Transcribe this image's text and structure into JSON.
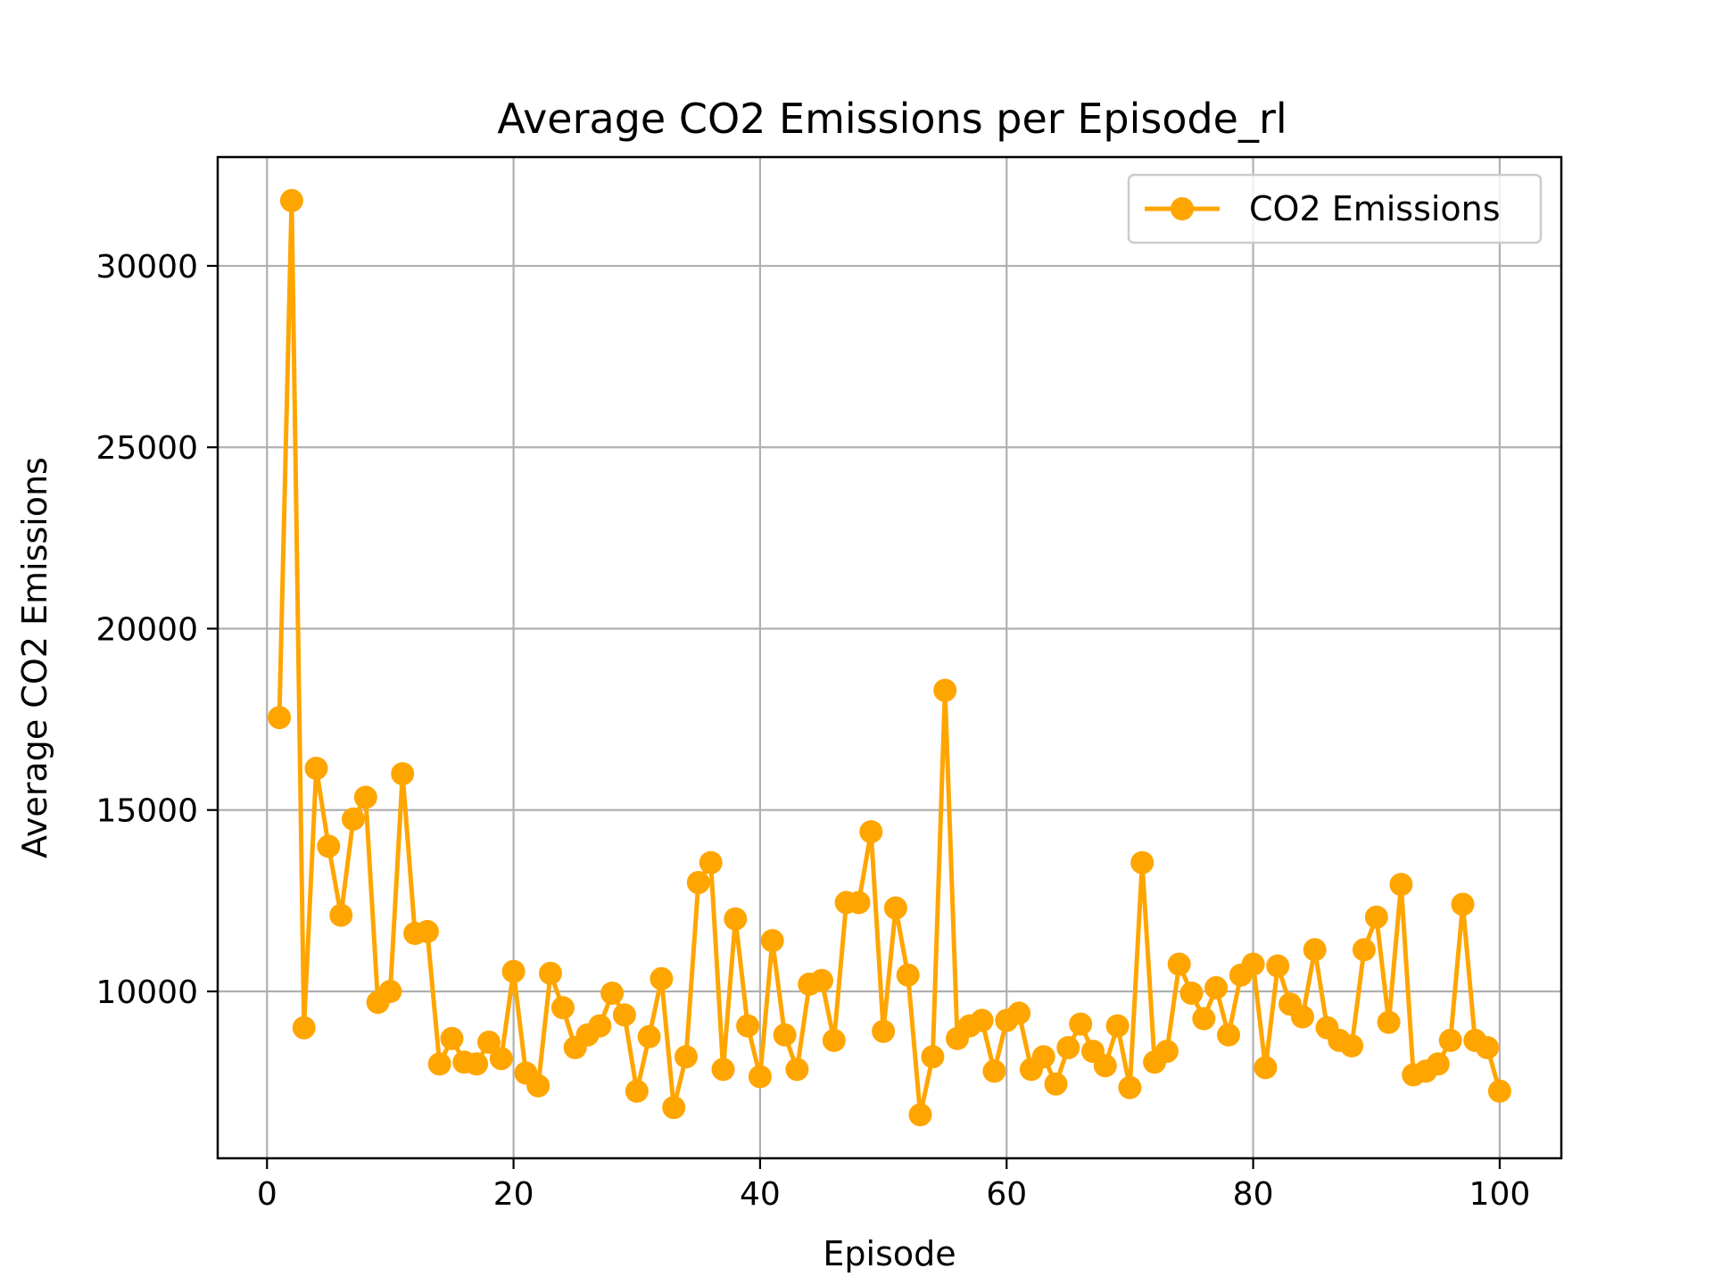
{
  "chart_data": {
    "type": "line",
    "title": "Average CO2 Emissions per Episode_rl",
    "xlabel": "Episode",
    "ylabel": "Average CO2 Emissions",
    "xlim": [
      -4,
      105
    ],
    "ylim": [
      5400,
      33000
    ],
    "xticks": [
      0,
      20,
      40,
      60,
      80,
      100
    ],
    "yticks": [
      10000,
      15000,
      20000,
      25000,
      30000
    ],
    "grid": true,
    "legend_position": "top-right",
    "color": "#FFA500",
    "series": [
      {
        "name": "CO2 Emissions",
        "x": [
          1,
          2,
          3,
          4,
          5,
          6,
          7,
          8,
          9,
          10,
          11,
          12,
          13,
          14,
          15,
          16,
          17,
          18,
          19,
          20,
          21,
          22,
          23,
          24,
          25,
          26,
          27,
          28,
          29,
          30,
          31,
          32,
          33,
          34,
          35,
          36,
          37,
          38,
          39,
          40,
          41,
          42,
          43,
          44,
          45,
          46,
          47,
          48,
          49,
          50,
          51,
          52,
          53,
          54,
          55,
          56,
          57,
          58,
          59,
          60,
          61,
          62,
          63,
          64,
          65,
          66,
          67,
          68,
          69,
          70,
          71,
          72,
          73,
          74,
          75,
          76,
          77,
          78,
          79,
          80,
          81,
          82,
          83,
          84,
          85,
          86,
          87,
          88,
          89,
          90,
          91,
          92,
          93,
          94,
          95,
          96,
          97,
          98,
          99,
          100
        ],
        "values": [
          17550,
          31800,
          9000,
          16150,
          14000,
          12100,
          14750,
          15350,
          9700,
          10000,
          16000,
          11600,
          11650,
          8000,
          8700,
          8050,
          8000,
          8600,
          8150,
          10550,
          7750,
          7400,
          10500,
          9550,
          8450,
          8800,
          9050,
          9950,
          9350,
          7250,
          8750,
          10350,
          6800,
          8200,
          13000,
          13550,
          7850,
          12000,
          9050,
          7650,
          11400,
          8800,
          7850,
          10200,
          10300,
          8650,
          12450,
          12450,
          14400,
          8900,
          12300,
          10450,
          6600,
          8200,
          18300,
          8700,
          9050,
          9200,
          7800,
          9200,
          9400,
          7850,
          8200,
          7450,
          8450,
          9100,
          8350,
          7950,
          9050,
          7350,
          13550,
          8050,
          8350,
          10750,
          9950,
          9250,
          10100,
          8800,
          10450,
          10750,
          7900,
          10700,
          9650,
          9300,
          11150,
          9000,
          8650,
          8500,
          11150,
          12050,
          9150,
          12950,
          7700,
          7800,
          8000,
          8650,
          12400,
          8650,
          8450,
          7250
        ]
      }
    ]
  }
}
